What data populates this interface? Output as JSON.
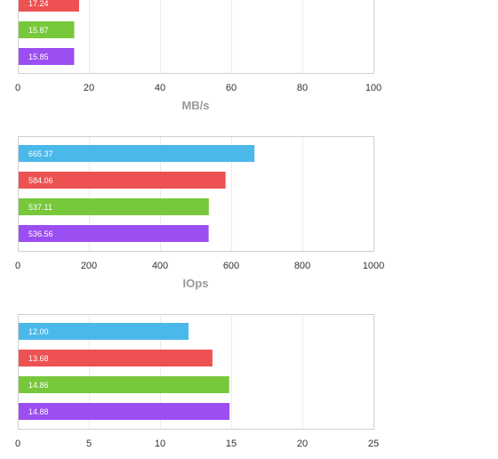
{
  "colors": [
    "#4bb8ea",
    "#ee5151",
    "#78c83c",
    "#9b4ef1"
  ],
  "chart_data": [
    {
      "type": "bar",
      "orientation": "horizontal",
      "series": [
        {
          "value": 17.24,
          "label": "17.24",
          "color": "#ee5151"
        },
        {
          "value": 15.87,
          "label": "15.87",
          "color": "#78c83c"
        },
        {
          "value": 15.85,
          "label": "15.85",
          "color": "#9b4ef1"
        }
      ],
      "xlim": [
        0,
        100
      ],
      "xticks": [
        "0",
        "20",
        "40",
        "60",
        "80",
        "100"
      ],
      "xlabel": "MB/s",
      "grid": true
    },
    {
      "type": "bar",
      "orientation": "horizontal",
      "series": [
        {
          "value": 665.37,
          "label": "665.37",
          "color": "#4bb8ea"
        },
        {
          "value": 584.06,
          "label": "584.06",
          "color": "#ee5151"
        },
        {
          "value": 537.11,
          "label": "537.11",
          "color": "#78c83c"
        },
        {
          "value": 536.56,
          "label": "536.56",
          "color": "#9b4ef1"
        }
      ],
      "xlim": [
        0,
        1000
      ],
      "xticks": [
        "0",
        "200",
        "400",
        "600",
        "800",
        "1000"
      ],
      "xlabel": "IOps",
      "grid": true
    },
    {
      "type": "bar",
      "orientation": "horizontal",
      "series": [
        {
          "value": 12.0,
          "label": "12.00",
          "color": "#4bb8ea"
        },
        {
          "value": 13.68,
          "label": "13.68",
          "color": "#ee5151"
        },
        {
          "value": 14.86,
          "label": "14.86",
          "color": "#78c83c"
        },
        {
          "value": 14.88,
          "label": "14.88",
          "color": "#9b4ef1"
        }
      ],
      "xlim": [
        0,
        25
      ],
      "xticks": [
        "0",
        "5",
        "10",
        "15",
        "20",
        "25"
      ],
      "xlabel": "",
      "grid": true
    }
  ]
}
